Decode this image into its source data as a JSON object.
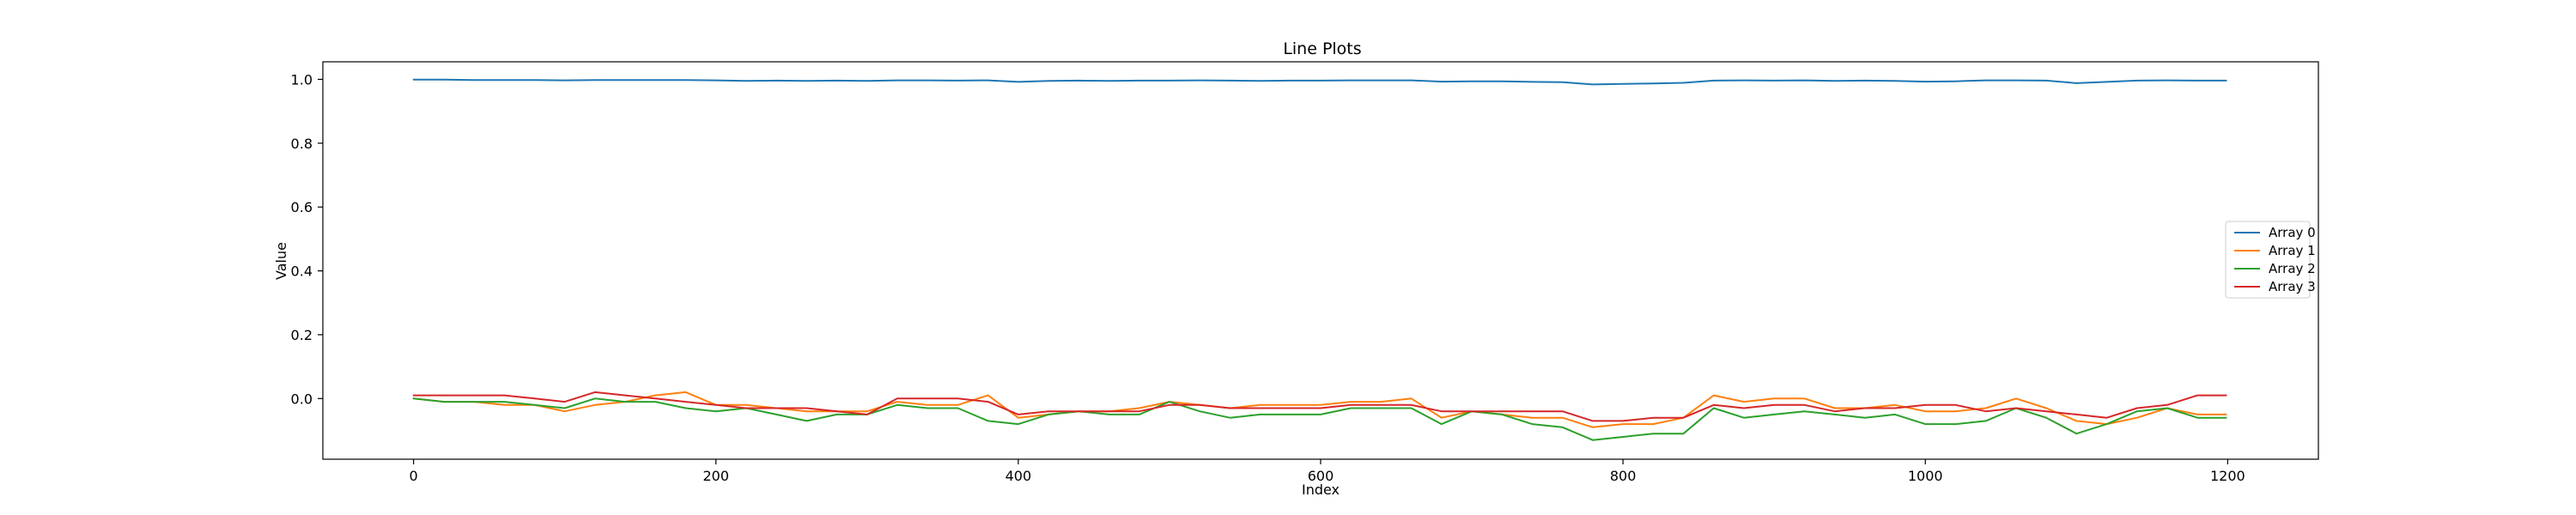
{
  "chart_data": {
    "type": "line",
    "title": "Line Plots",
    "xlabel": "Index",
    "ylabel": "Value",
    "xlim": [
      -60,
      1260
    ],
    "ylim": [
      -0.19,
      1.055
    ],
    "xticks": [
      0,
      200,
      400,
      600,
      800,
      1000,
      1200
    ],
    "yticks": [
      0.0,
      0.2,
      0.4,
      0.6,
      0.8,
      1.0
    ],
    "xtick_labels": [
      "0",
      "200",
      "400",
      "600",
      "800",
      "1000",
      "1200"
    ],
    "ytick_labels": [
      "0.0",
      "0.2",
      "0.4",
      "0.6",
      "0.8",
      "1.0"
    ],
    "grid": false,
    "legend_position": "center-right",
    "x": [
      0,
      20,
      40,
      60,
      80,
      100,
      120,
      140,
      160,
      180,
      200,
      220,
      240,
      260,
      280,
      300,
      320,
      340,
      360,
      380,
      400,
      420,
      440,
      460,
      480,
      500,
      520,
      540,
      560,
      580,
      600,
      620,
      640,
      660,
      680,
      700,
      720,
      740,
      760,
      780,
      800,
      820,
      840,
      860,
      880,
      900,
      920,
      940,
      960,
      980,
      1000,
      1020,
      1040,
      1060,
      1080,
      1100,
      1120,
      1140,
      1160,
      1180,
      1199
    ],
    "series": [
      {
        "name": "Array 0",
        "color": "#1f77b4",
        "values": [
          0.999,
          0.999,
          0.998,
          0.998,
          0.998,
          0.997,
          0.998,
          0.998,
          0.998,
          0.998,
          0.997,
          0.995,
          0.996,
          0.995,
          0.996,
          0.995,
          0.997,
          0.997,
          0.996,
          0.997,
          0.992,
          0.995,
          0.996,
          0.995,
          0.996,
          0.996,
          0.997,
          0.996,
          0.995,
          0.996,
          0.996,
          0.997,
          0.997,
          0.997,
          0.993,
          0.994,
          0.994,
          0.992,
          0.991,
          0.984,
          0.986,
          0.987,
          0.989,
          0.996,
          0.997,
          0.996,
          0.997,
          0.995,
          0.996,
          0.995,
          0.993,
          0.994,
          0.997,
          0.997,
          0.996,
          0.988,
          0.992,
          0.996,
          0.997,
          0.996,
          0.996
        ]
      },
      {
        "name": "Array 1",
        "color": "#ff7f0e",
        "values": [
          0.0,
          -0.01,
          -0.01,
          -0.02,
          -0.02,
          -0.04,
          -0.02,
          -0.01,
          0.01,
          0.02,
          -0.02,
          -0.02,
          -0.03,
          -0.04,
          -0.04,
          -0.04,
          -0.01,
          -0.02,
          -0.02,
          0.01,
          -0.06,
          -0.05,
          -0.04,
          -0.04,
          -0.03,
          -0.01,
          -0.02,
          -0.03,
          -0.02,
          -0.02,
          -0.02,
          -0.01,
          -0.01,
          0.0,
          -0.06,
          -0.04,
          -0.05,
          -0.06,
          -0.06,
          -0.09,
          -0.08,
          -0.08,
          -0.06,
          0.01,
          -0.01,
          0.0,
          0.0,
          -0.03,
          -0.03,
          -0.02,
          -0.04,
          -0.04,
          -0.03,
          0.0,
          -0.03,
          -0.07,
          -0.08,
          -0.06,
          -0.03,
          -0.05,
          -0.05
        ]
      },
      {
        "name": "Array 2",
        "color": "#2ca02c",
        "values": [
          0.0,
          -0.01,
          -0.01,
          -0.01,
          -0.02,
          -0.03,
          0.0,
          -0.01,
          -0.01,
          -0.03,
          -0.04,
          -0.03,
          -0.05,
          -0.07,
          -0.05,
          -0.05,
          -0.02,
          -0.03,
          -0.03,
          -0.07,
          -0.08,
          -0.05,
          -0.04,
          -0.05,
          -0.05,
          -0.01,
          -0.04,
          -0.06,
          -0.05,
          -0.05,
          -0.05,
          -0.03,
          -0.03,
          -0.03,
          -0.08,
          -0.04,
          -0.05,
          -0.08,
          -0.09,
          -0.13,
          -0.12,
          -0.11,
          -0.11,
          -0.03,
          -0.06,
          -0.05,
          -0.04,
          -0.05,
          -0.06,
          -0.05,
          -0.08,
          -0.08,
          -0.07,
          -0.03,
          -0.06,
          -0.11,
          -0.08,
          -0.04,
          -0.03,
          -0.06,
          -0.06
        ]
      },
      {
        "name": "Array 3",
        "color": "#d62728",
        "values": [
          0.01,
          0.01,
          0.01,
          0.01,
          0.0,
          -0.01,
          0.02,
          0.01,
          0.0,
          -0.01,
          -0.02,
          -0.03,
          -0.03,
          -0.03,
          -0.04,
          -0.05,
          0.0,
          0.0,
          0.0,
          -0.01,
          -0.05,
          -0.04,
          -0.04,
          -0.04,
          -0.04,
          -0.02,
          -0.02,
          -0.03,
          -0.03,
          -0.03,
          -0.03,
          -0.02,
          -0.02,
          -0.02,
          -0.04,
          -0.04,
          -0.04,
          -0.04,
          -0.04,
          -0.07,
          -0.07,
          -0.06,
          -0.06,
          -0.02,
          -0.03,
          -0.02,
          -0.02,
          -0.04,
          -0.03,
          -0.03,
          -0.02,
          -0.02,
          -0.04,
          -0.03,
          -0.04,
          -0.05,
          -0.06,
          -0.03,
          -0.02,
          0.01,
          0.01
        ]
      }
    ]
  }
}
